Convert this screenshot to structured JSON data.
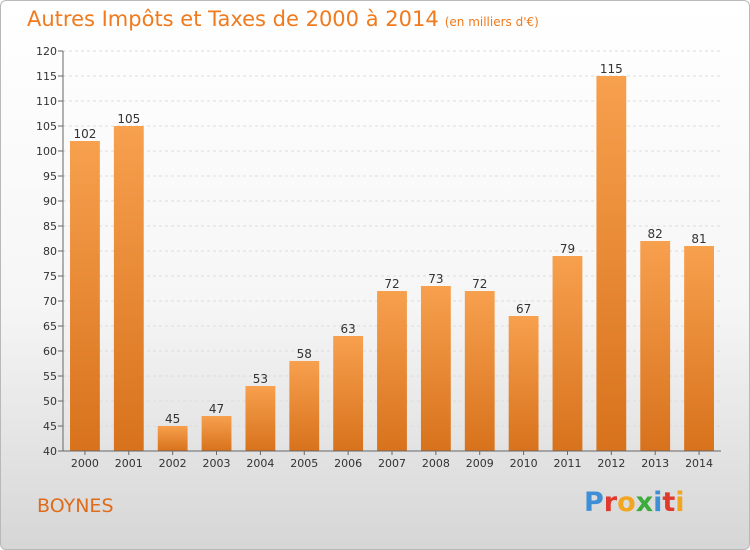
{
  "title": "Autres Impôts et Taxes de 2000 à 2014",
  "unit_note": "(en milliers d'€)",
  "commune": "BOYNES",
  "brand": {
    "letters": [
      "P",
      "r",
      "o",
      "x",
      "i",
      "t",
      "i"
    ],
    "colors": [
      "#3f8fd6",
      "#e0392e",
      "#f2a51f",
      "#3cac3a",
      "#3f8fd6",
      "#e0392e",
      "#f2a51f"
    ]
  },
  "colors": {
    "bar_top": "#f7a04e",
    "bar_bottom": "#d8721c",
    "title": "#f07a1d"
  },
  "chart_data": {
    "type": "bar",
    "categories": [
      "2000",
      "2001",
      "2002",
      "2003",
      "2004",
      "2005",
      "2006",
      "2007",
      "2008",
      "2009",
      "2010",
      "2011",
      "2012",
      "2013",
      "2014"
    ],
    "values": [
      102,
      105,
      45,
      47,
      53,
      58,
      63,
      72,
      73,
      72,
      67,
      79,
      115,
      82,
      81
    ],
    "ylim": [
      40,
      120
    ],
    "yticks": [
      40,
      45,
      50,
      55,
      60,
      65,
      70,
      75,
      80,
      85,
      90,
      95,
      100,
      105,
      110,
      115,
      120
    ],
    "grid": true,
    "legend": "none"
  }
}
